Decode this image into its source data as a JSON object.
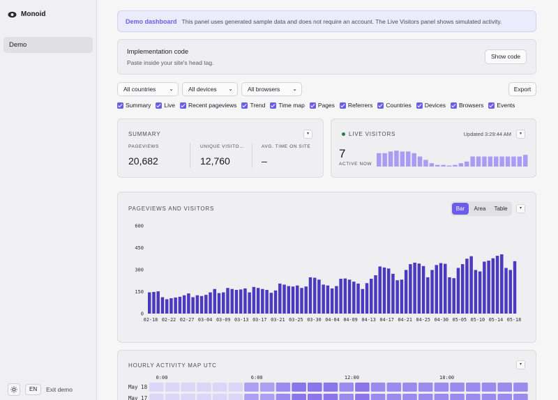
{
  "sidebar": {
    "brand": "Monoid",
    "items": [
      {
        "label": "Demo"
      }
    ],
    "lang": "EN",
    "exit": "Exit demo"
  },
  "banner": {
    "title": "Demo dashboard",
    "text": "This panel uses generated sample data and does not require an account. The Live Visitors panel shows simulated activity."
  },
  "implementation": {
    "title": "Implementation code",
    "subtitle": "Paste inside your site's head tag.",
    "button": "Show code"
  },
  "filters": {
    "countries": "All countries",
    "devices": "All devices",
    "browsers": "All browsers",
    "export": "Export"
  },
  "toggles": [
    "Summary",
    "Live",
    "Recent pageviews",
    "Trend",
    "Time map",
    "Pages",
    "Referrers",
    "Countries",
    "Devices",
    "Browsers",
    "Events"
  ],
  "summary": {
    "title": "SUMMARY",
    "stats": [
      {
        "label": "PAGEVIEWS",
        "value": "20,682"
      },
      {
        "label": "UNIQUE VISITO…",
        "value": "12,760"
      },
      {
        "label": "AVG. TIME ON SITE",
        "value": "–"
      }
    ]
  },
  "live": {
    "title": "LIVE VISITORS",
    "updated": "Updated 3:29:44 AM",
    "count": "7",
    "label": "ACTIVE NOW",
    "activity": [
      8,
      8,
      9,
      9.5,
      9,
      9,
      8,
      6,
      4,
      2,
      1,
      1,
      0.5,
      1,
      2,
      3,
      6,
      6,
      6,
      6,
      6,
      6,
      6,
      6,
      6,
      7
    ]
  },
  "pageviews": {
    "title": "PAGEVIEWS AND VISITORS",
    "tabs": [
      "Bar",
      "Area",
      "Table"
    ],
    "active_tab": "Bar"
  },
  "chart_data": {
    "type": "bar",
    "title": "PAGEVIEWS AND VISITORS",
    "ylim": [
      0,
      600
    ],
    "yticks": [
      0,
      150,
      300,
      450,
      600
    ],
    "xticks": [
      "02-18",
      "02-22",
      "02-27",
      "03-04",
      "03-09",
      "03-13",
      "03-17",
      "03-21",
      "03-25",
      "03-30",
      "04-04",
      "04-09",
      "04-13",
      "04-17",
      "04-21",
      "04-25",
      "04-30",
      "05-05",
      "05-10",
      "05-14",
      "05-18"
    ],
    "values": [
      145,
      148,
      152,
      112,
      98,
      105,
      110,
      115,
      125,
      138,
      112,
      125,
      120,
      128,
      145,
      168,
      140,
      145,
      175,
      168,
      162,
      165,
      172,
      145,
      182,
      175,
      168,
      162,
      142,
      158,
      205,
      198,
      188,
      185,
      192,
      175,
      185,
      248,
      245,
      232,
      198,
      192,
      172,
      188,
      238,
      240,
      232,
      218,
      205,
      168,
      208,
      238,
      262,
      322,
      315,
      308,
      272,
      228,
      232,
      298,
      338,
      348,
      342,
      325,
      248,
      298,
      332,
      345,
      340,
      248,
      242,
      312,
      338,
      375,
      392,
      298,
      288,
      355,
      362,
      378,
      395,
      405,
      312,
      298,
      358
    ]
  },
  "hourly": {
    "title": "HOURLY ACTIVITY MAP UTC",
    "hours": [
      "0:00",
      "6:00",
      "12:00",
      "18:00"
    ],
    "rows": [
      {
        "label": "May 18",
        "values": [
          1,
          1,
          1,
          1,
          1,
          1,
          4,
          4,
          5,
          6,
          6,
          6,
          5,
          6,
          5,
          5,
          5,
          5,
          5,
          5,
          5,
          5,
          5,
          5
        ]
      },
      {
        "label": "May 17",
        "values": [
          1,
          1,
          1,
          1,
          1,
          1,
          4,
          4,
          5,
          6,
          6,
          6,
          5,
          6,
          5,
          5,
          5,
          5,
          5,
          5,
          5,
          5,
          5,
          5
        ]
      }
    ]
  }
}
